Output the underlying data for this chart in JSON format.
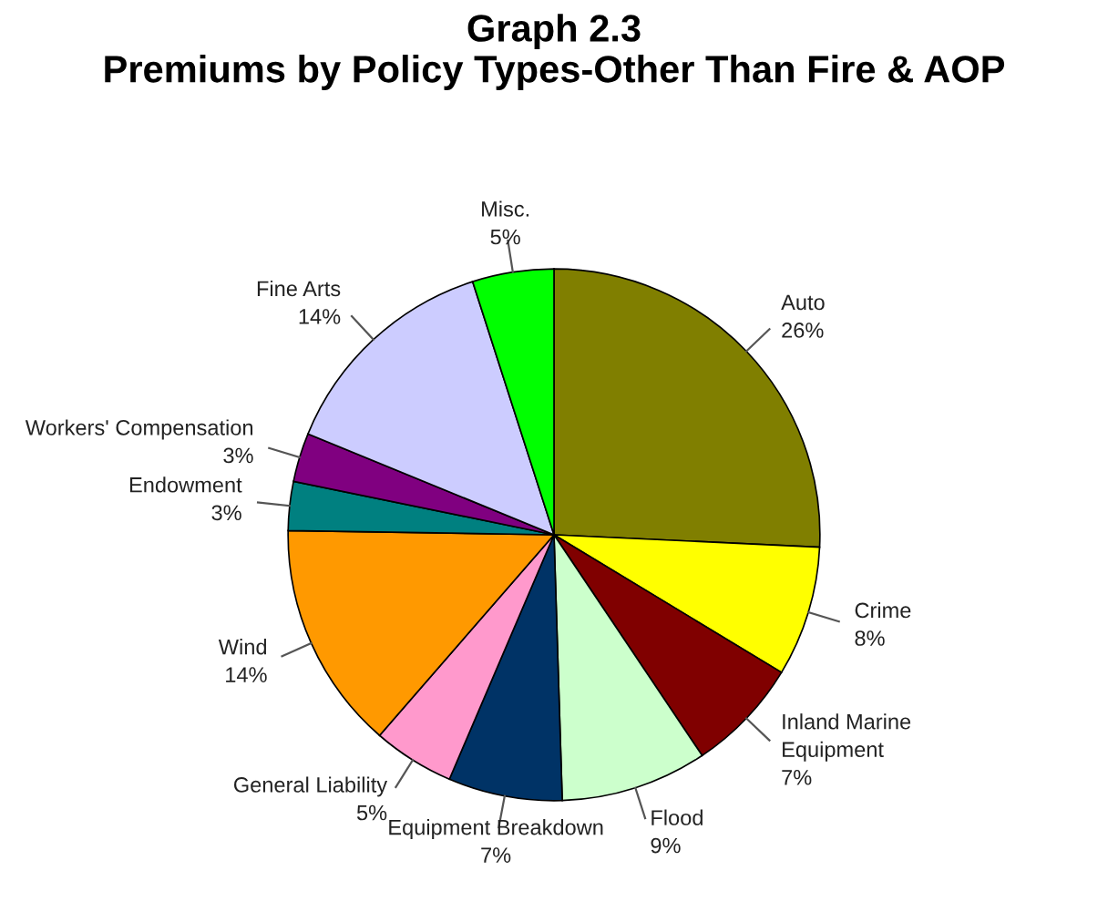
{
  "chart_data": {
    "type": "pie",
    "title": "Graph 2.3\nPremiums by Policy Types-Other Than Fire & AOP",
    "categories": [
      "Auto",
      "Crime",
      "Inland Marine\nEquipment",
      "Flood",
      "Equipment Breakdown",
      "General Liability",
      "Wind",
      "Endowment",
      "Workers' Compensation",
      "Fine Arts",
      "Misc."
    ],
    "values": [
      26,
      8,
      7,
      9,
      7,
      5,
      14,
      3,
      3,
      14,
      5
    ],
    "value_labels": [
      "26%",
      "8%",
      "7%",
      "9%",
      "7%",
      "5%",
      "14%",
      "3%",
      "3%",
      "14%",
      "5%"
    ],
    "colors": [
      "#807f00",
      "#ffff00",
      "#800000",
      "#ccffcc",
      "#003366",
      "#ff99cc",
      "#ff9900",
      "#008080",
      "#800080",
      "#ccccff",
      "#00ff00"
    ],
    "legend": false
  }
}
